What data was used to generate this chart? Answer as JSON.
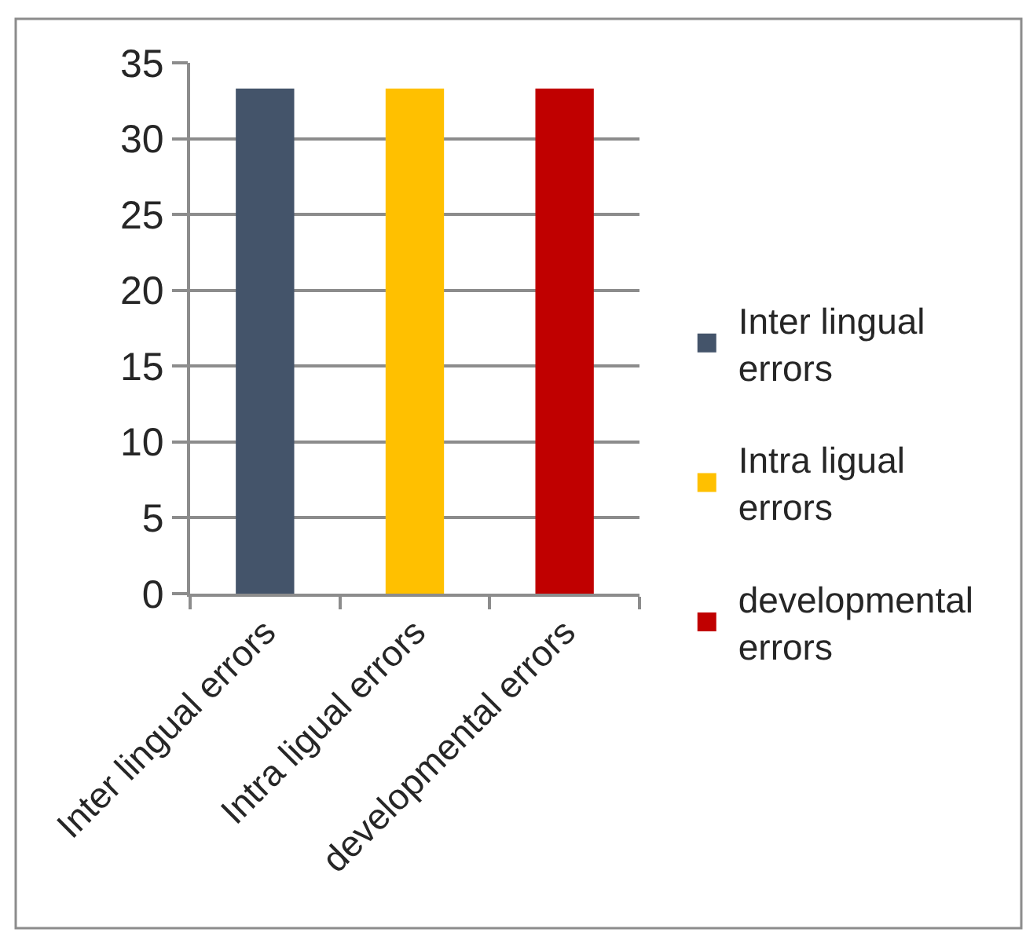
{
  "chart_data": {
    "type": "bar",
    "categories": [
      "Inter lingual errors",
      "Intra ligual errors",
      "developmental errors"
    ],
    "series": [
      {
        "name": "Inter lingual errors",
        "color": "#44546a",
        "values": [
          33.3,
          null,
          null
        ]
      },
      {
        "name": "Intra ligual errors",
        "color": "#ffc000",
        "values": [
          null,
          33.3,
          null
        ]
      },
      {
        "name": "developmental errors",
        "color": "#c00000",
        "values": [
          null,
          null,
          33.3
        ]
      }
    ],
    "ylim": [
      0,
      35
    ],
    "yticks": [
      0,
      5,
      10,
      15,
      20,
      25,
      30,
      35
    ],
    "grid": "y",
    "legend": "right"
  }
}
